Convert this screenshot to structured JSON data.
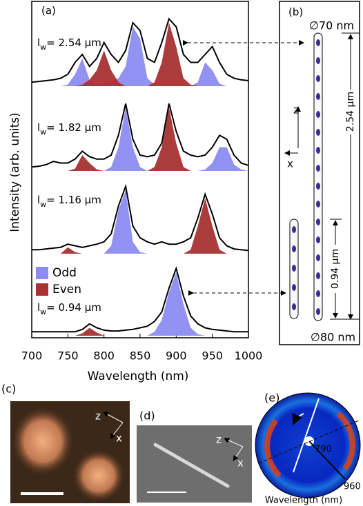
{
  "chart_data": {
    "type": "line",
    "panel_label": "(a)",
    "x_label": "Wavelength (nm)",
    "y_label": "Intensity (arb. units)",
    "x": [
      700,
      710,
      720,
      730,
      740,
      750,
      760,
      770,
      780,
      790,
      800,
      810,
      820,
      830,
      840,
      850,
      860,
      870,
      880,
      890,
      900,
      910,
      920,
      930,
      940,
      950,
      960,
      970,
      980,
      990,
      1000
    ],
    "xlim": [
      700,
      1000
    ],
    "xticks": [
      700,
      750,
      800,
      850,
      900,
      950,
      1000
    ],
    "legend": [
      {
        "name": "Odd",
        "color": "#8c8cf2"
      },
      {
        "name": "Even",
        "color": "#a83232"
      }
    ],
    "spectra": [
      {
        "label": {
          "symbol": "l",
          "subscript": "w",
          "text": "= 2.54 µm"
        },
        "measured": [
          0.05,
          0.06,
          0.07,
          0.08,
          0.1,
          0.15,
          0.3,
          0.4,
          0.25,
          0.35,
          0.55,
          0.4,
          0.3,
          0.45,
          0.8,
          0.7,
          0.35,
          0.3,
          0.55,
          0.85,
          0.75,
          0.4,
          0.3,
          0.3,
          0.4,
          0.5,
          0.3,
          0.15,
          0.1,
          0.08,
          0.07
        ],
        "odd": [
          0,
          0,
          0,
          0,
          0,
          0.02,
          0.15,
          0.35,
          0.08,
          0.02,
          0.03,
          0.05,
          0.1,
          0.25,
          0.75,
          0.6,
          0.1,
          0.02,
          0,
          0,
          0,
          0,
          0,
          0.05,
          0.3,
          0.2,
          0.03,
          0,
          0,
          0,
          0
        ],
        "even": [
          0,
          0,
          0,
          0,
          0,
          0,
          0,
          0.02,
          0.08,
          0.2,
          0.45,
          0.2,
          0.05,
          0,
          0,
          0,
          0,
          0.05,
          0.3,
          0.8,
          0.5,
          0.1,
          0.02,
          0,
          0,
          0,
          0,
          0,
          0,
          0,
          0
        ]
      },
      {
        "label": {
          "symbol": "l",
          "subscript": "w",
          "text": "= 1.82 µm"
        },
        "measured": [
          0.05,
          0.06,
          0.08,
          0.12,
          0.1,
          0.1,
          0.15,
          0.25,
          0.18,
          0.15,
          0.15,
          0.2,
          0.45,
          0.85,
          0.4,
          0.2,
          0.18,
          0.2,
          0.35,
          0.85,
          0.5,
          0.25,
          0.2,
          0.18,
          0.2,
          0.3,
          0.45,
          0.4,
          0.2,
          0.1,
          0.07
        ],
        "odd": [
          0,
          0,
          0,
          0,
          0,
          0,
          0,
          0,
          0,
          0,
          0,
          0.05,
          0.3,
          0.8,
          0.3,
          0.05,
          0,
          0,
          0,
          0,
          0,
          0,
          0,
          0,
          0.02,
          0.1,
          0.3,
          0.3,
          0.08,
          0.02,
          0
        ],
        "even": [
          0,
          0,
          0,
          0,
          0,
          0,
          0.03,
          0.2,
          0.1,
          0.02,
          0,
          0,
          0,
          0,
          0,
          0,
          0,
          0.05,
          0.3,
          0.8,
          0.35,
          0.05,
          0,
          0,
          0,
          0,
          0,
          0,
          0,
          0,
          0
        ]
      },
      {
        "label": {
          "symbol": "l",
          "subscript": "w",
          "text": "= 1.16 µm"
        },
        "measured": [
          0.05,
          0.05,
          0.06,
          0.07,
          0.08,
          0.12,
          0.1,
          0.08,
          0.1,
          0.12,
          0.15,
          0.25,
          0.6,
          0.85,
          0.35,
          0.2,
          0.15,
          0.12,
          0.15,
          0.12,
          0.12,
          0.15,
          0.2,
          0.45,
          0.75,
          0.5,
          0.2,
          0.1,
          0.06,
          0.05,
          0.04
        ],
        "odd": [
          0,
          0,
          0,
          0,
          0,
          0,
          0,
          0,
          0,
          0,
          0,
          0.1,
          0.55,
          0.8,
          0.15,
          0.02,
          0,
          0,
          0,
          0,
          0,
          0,
          0,
          0,
          0,
          0,
          0,
          0,
          0,
          0,
          0
        ],
        "even": [
          0,
          0,
          0,
          0,
          0,
          0.08,
          0.02,
          0,
          0,
          0,
          0,
          0,
          0,
          0,
          0,
          0,
          0,
          0,
          0,
          0,
          0,
          0,
          0.05,
          0.35,
          0.7,
          0.35,
          0.05,
          0,
          0,
          0,
          0
        ]
      },
      {
        "label": {
          "symbol": "l",
          "subscript": "w",
          "text": "= 0.94 µm"
        },
        "measured": [
          0.05,
          0.05,
          0.05,
          0.05,
          0.05,
          0.05,
          0.05,
          0.08,
          0.15,
          0.1,
          0.07,
          0.06,
          0.06,
          0.07,
          0.08,
          0.1,
          0.12,
          0.18,
          0.3,
          0.6,
          0.85,
          0.5,
          0.25,
          0.15,
          0.1,
          0.08,
          0.07,
          0.06,
          0.05,
          0.05,
          0.05
        ],
        "odd": [
          0,
          0,
          0,
          0,
          0,
          0,
          0,
          0,
          0,
          0,
          0,
          0,
          0,
          0,
          0,
          0,
          0,
          0.05,
          0.2,
          0.55,
          0.8,
          0.4,
          0.1,
          0.02,
          0,
          0,
          0,
          0,
          0,
          0,
          0
        ],
        "even": [
          0,
          0,
          0,
          0,
          0,
          0,
          0,
          0.03,
          0.1,
          0.04,
          0,
          0,
          0,
          0,
          0,
          0,
          0,
          0,
          0,
          0,
          0,
          0,
          0,
          0,
          0,
          0,
          0,
          0,
          0,
          0,
          0
        ]
      }
    ]
  },
  "panel_b": {
    "label": "(b)",
    "top_diameter": "∅70 nm",
    "long_length": "2.54 µm",
    "short_length": "0.94 µm",
    "bottom_diameter": "∅80 nm",
    "axis_z": "z",
    "axis_x": "x"
  },
  "panel_c": {
    "label": "(c)",
    "axis_z": "z",
    "axis_x": "x"
  },
  "panel_d": {
    "label": "(d)",
    "axis_z": "z",
    "axis_x": "x"
  },
  "panel_e": {
    "label": "(e)",
    "inner_label": "790",
    "outer_label": "960",
    "axis_label": "Wavelength (nm)"
  }
}
